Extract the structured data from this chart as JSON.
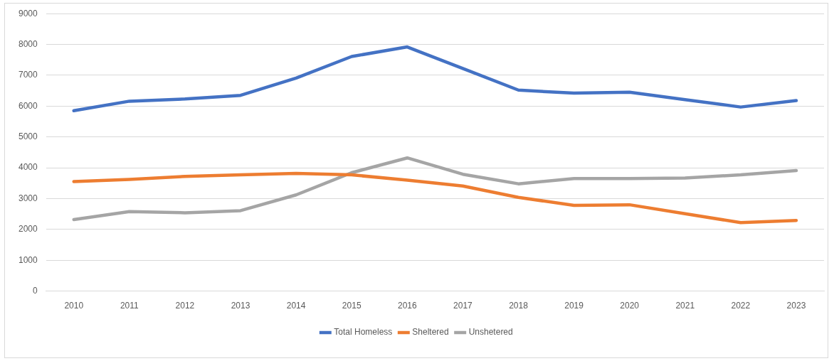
{
  "chart_data": {
    "type": "line",
    "categories": [
      "2010",
      "2011",
      "2012",
      "2013",
      "2014",
      "2015",
      "2016",
      "2017",
      "2018",
      "2019",
      "2020",
      "2021",
      "2022",
      "2023"
    ],
    "series": [
      {
        "name": "Total Homeless",
        "color": "#4472c4",
        "values": [
          5850,
          6160,
          6230,
          6350,
          6910,
          7610,
          7920,
          7220,
          6520,
          6420,
          6450,
          6210,
          5970,
          6180
        ]
      },
      {
        "name": "Sheltered",
        "color": "#ed7d31",
        "values": [
          3550,
          3620,
          3720,
          3770,
          3820,
          3770,
          3600,
          3410,
          3040,
          2780,
          2800,
          2510,
          2220,
          2290
        ]
      },
      {
        "name": "Unshetered",
        "color": "#a5a5a5",
        "values": [
          2320,
          2580,
          2540,
          2610,
          3120,
          3840,
          4320,
          3790,
          3480,
          3650,
          3650,
          3670,
          3770,
          3910
        ]
      }
    ],
    "ylim": [
      0,
      9000
    ],
    "yticks": [
      0,
      1000,
      2000,
      3000,
      4000,
      5000,
      6000,
      7000,
      8000,
      9000
    ],
    "grid": "y",
    "legend": "bottom",
    "marker": "none",
    "line_style": "solid"
  }
}
